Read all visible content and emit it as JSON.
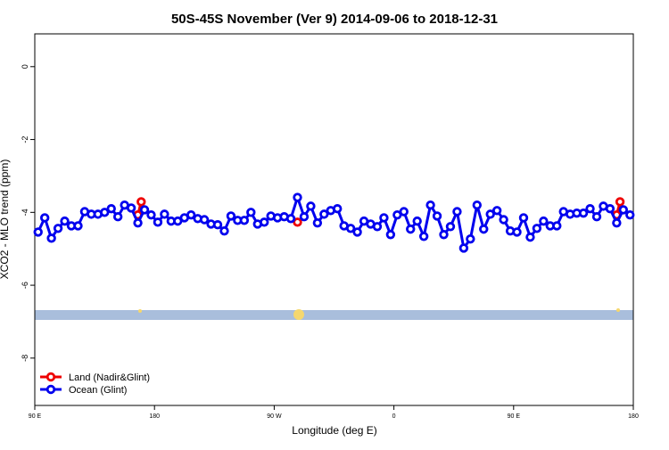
{
  "chart_data": {
    "type": "line",
    "title": "50S-45S November (Ver 9)   2014-09-06 to 2018-12-31",
    "x_label": "Longitude (deg E)",
    "y_label": "XCO2 - MLO trend (ppm)",
    "xlim": [
      90,
      540
    ],
    "xticks": [
      {
        "value": 90,
        "label": "90 E"
      },
      {
        "value": 180,
        "label": "180"
      },
      {
        "value": 270,
        "label": "90 W"
      },
      {
        "value": 360,
        "label": "0"
      },
      {
        "value": 450,
        "label": "90 E"
      },
      {
        "value": 540,
        "label": "180"
      }
    ],
    "ylim": [
      -9.3,
      0.9
    ],
    "yticks": [
      0,
      -2,
      -4,
      -6,
      -8
    ],
    "legend": "bottom-left",
    "series": [
      {
        "name": "Ocean (Glint)",
        "color": "#0000ee",
        "x": [
          92.5,
          97.5,
          102.5,
          107.5,
          112.5,
          117.5,
          122.5,
          127.5,
          132.5,
          137.5,
          142.5,
          147.5,
          152.5,
          157.5,
          162.5,
          167.5,
          172.5,
          177.5,
          182.5,
          187.5,
          192.5,
          197.5,
          202.5,
          207.5,
          212.5,
          217.5,
          222.5,
          227.5,
          232.5,
          237.5,
          242.5,
          247.5,
          252.5,
          257.5,
          262.5,
          267.5,
          272.5,
          277.5,
          282.5,
          287.5,
          292.5,
          297.5,
          302.5,
          307.5,
          312.5,
          317.5,
          322.5,
          327.5,
          332.5,
          337.5,
          342.5,
          347.5,
          352.5,
          357.5,
          362.5,
          367.5,
          372.5,
          377.5,
          382.5,
          387.5,
          392.5,
          397.5,
          402.5,
          407.5,
          412.5,
          417.5,
          422.5,
          427.5,
          432.5,
          437.5,
          442.5,
          447.5,
          452.5,
          457.5,
          462.5,
          467.5,
          472.5,
          477.5,
          482.5,
          487.5,
          492.5,
          497.5,
          502.5,
          507.5,
          512.5,
          517.5,
          522.5,
          527.5,
          532.5,
          537.5
        ],
        "values": [
          -4.54,
          -4.15,
          -4.71,
          -4.44,
          -4.24,
          -4.37,
          -4.37,
          -3.98,
          -4.05,
          -4.05,
          -4.0,
          -3.9,
          -4.12,
          -3.8,
          -3.88,
          -4.29,
          -3.93,
          -4.07,
          -4.27,
          -4.05,
          -4.24,
          -4.24,
          -4.15,
          -4.07,
          -4.17,
          -4.2,
          -4.32,
          -4.34,
          -4.51,
          -4.1,
          -4.22,
          -4.22,
          -4.0,
          -4.32,
          -4.27,
          -4.1,
          -4.15,
          -4.12,
          -4.17,
          -3.59,
          -4.12,
          -3.83,
          -4.29,
          -4.05,
          -3.95,
          -3.9,
          -4.37,
          -4.44,
          -4.54,
          -4.24,
          -4.32,
          -4.39,
          -4.15,
          -4.61,
          -4.07,
          -3.98,
          -4.46,
          -4.24,
          -4.66,
          -3.8,
          -4.1,
          -4.61,
          -4.39,
          -3.98,
          -4.98,
          -4.73,
          -3.8,
          -4.46,
          -4.05,
          -3.95,
          -4.2,
          -4.51,
          -4.54,
          -4.15,
          -4.68,
          -4.44,
          -4.24,
          -4.37,
          -4.37,
          -3.98,
          -4.05,
          -4.02,
          -4.02,
          -3.9,
          -4.12,
          -3.83,
          -3.9,
          -4.29,
          -3.93,
          -4.07
        ]
      },
      {
        "name": "Land (Nadir&Glint)",
        "color": "#ee0000",
        "x": [
          167.5,
          170,
          175,
          287.5,
          290,
          527.5,
          530
        ],
        "values": [
          -4.07,
          -3.71,
          null,
          -4.27,
          null,
          -4.07,
          -3.71
        ]
      }
    ]
  }
}
